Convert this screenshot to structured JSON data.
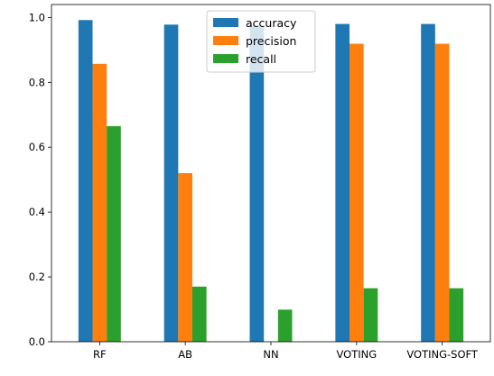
{
  "chart_data": {
    "type": "bar",
    "title": "",
    "xlabel": "",
    "ylabel": "",
    "categories": [
      "RF",
      "AB",
      "NN",
      "VOTING",
      "VOTING-SOFT"
    ],
    "series": [
      {
        "name": "accuracy",
        "color": "#1f77b4",
        "values": [
          0.992,
          0.978,
          0.975,
          0.98,
          0.98
        ]
      },
      {
        "name": "precision",
        "color": "#ff7f0e",
        "values": [
          0.857,
          0.52,
          0.0,
          0.919,
          0.919
        ]
      },
      {
        "name": "recall",
        "color": "#2ca02c",
        "values": [
          0.665,
          0.17,
          0.099,
          0.165,
          0.165
        ]
      }
    ],
    "ylim": [
      0,
      1.04
    ],
    "yticks": [
      0.0,
      0.2,
      0.4,
      0.6,
      0.8,
      1.0
    ],
    "ytick_labels": [
      "0.0",
      "0.2",
      "0.4",
      "0.6",
      "0.8",
      "1.0"
    ],
    "grid": false,
    "legend": {
      "placement": "top-center"
    }
  }
}
